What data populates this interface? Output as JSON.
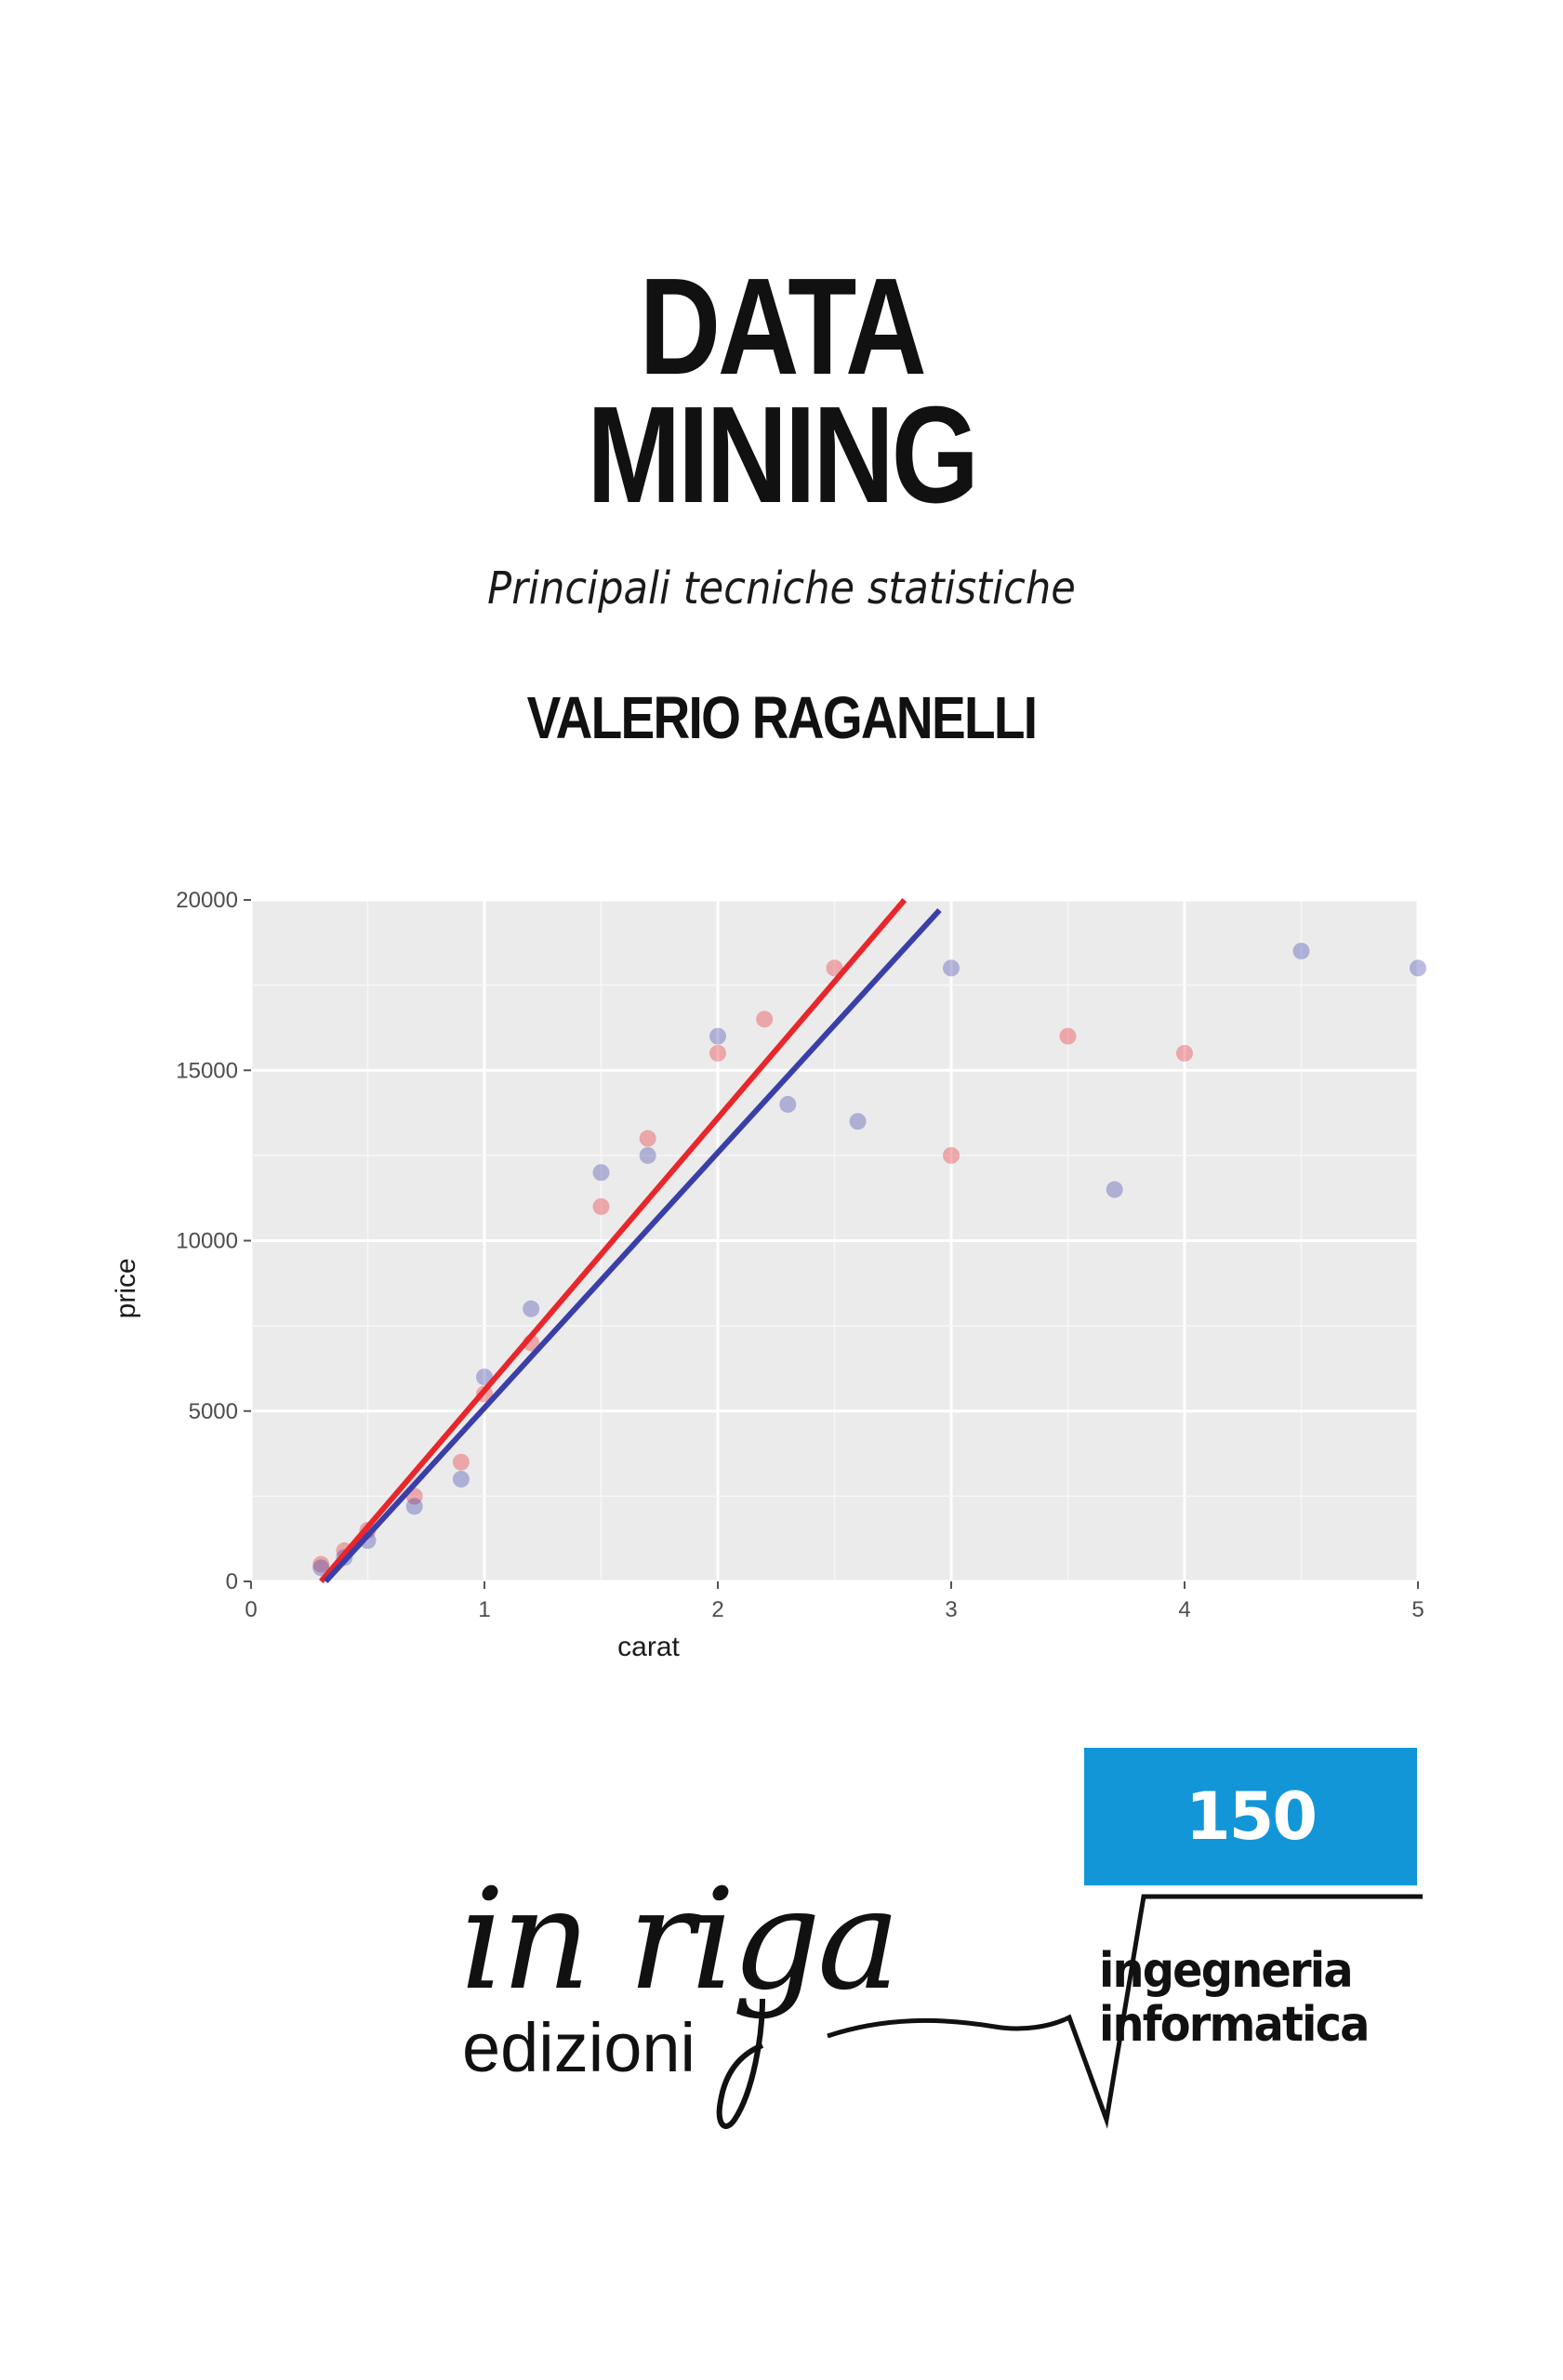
{
  "cover": {
    "title_line_1": "DATA",
    "title_line_2": "MINING",
    "subtitle": "Principali tecniche statistiche",
    "author": "VALERIO RAGANELLI"
  },
  "chart_data": {
    "type": "scatter",
    "title": "",
    "xlabel": "carat",
    "ylabel": "price",
    "xlim": [
      0,
      5
    ],
    "ylim": [
      0,
      20000
    ],
    "x_ticks": [
      "0",
      "1",
      "2",
      "3",
      "4",
      "5"
    ],
    "y_ticks": [
      "0",
      "5000",
      "10000",
      "15000",
      "20000"
    ],
    "grid": true,
    "legend": "none",
    "background": "#ebebeb",
    "series": [
      {
        "color": "#e8262b",
        "points": [
          [
            0.3,
            500
          ],
          [
            0.4,
            900
          ],
          [
            0.5,
            1500
          ],
          [
            0.7,
            2500
          ],
          [
            0.9,
            3500
          ],
          [
            1.0,
            5500
          ],
          [
            1.2,
            7000
          ],
          [
            1.5,
            11000
          ],
          [
            1.7,
            13000
          ],
          [
            2.0,
            15500
          ],
          [
            2.2,
            16500
          ],
          [
            2.5,
            18000
          ],
          [
            3.0,
            12500
          ],
          [
            3.5,
            16000
          ],
          [
            4.0,
            15500
          ]
        ],
        "fit_line": [
          [
            0.3,
            0
          ],
          [
            2.8,
            20000
          ]
        ]
      },
      {
        "color": "#3a3fa8",
        "points": [
          [
            0.3,
            400
          ],
          [
            0.4,
            700
          ],
          [
            0.5,
            1200
          ],
          [
            0.7,
            2200
          ],
          [
            0.9,
            3000
          ],
          [
            1.0,
            6000
          ],
          [
            1.2,
            8000
          ],
          [
            1.5,
            12000
          ],
          [
            1.7,
            12500
          ],
          [
            2.0,
            16000
          ],
          [
            2.3,
            14000
          ],
          [
            2.6,
            13500
          ],
          [
            3.0,
            18000
          ],
          [
            3.7,
            11500
          ],
          [
            4.5,
            18500
          ],
          [
            5.0,
            18000
          ]
        ],
        "fit_line": [
          [
            0.32,
            0
          ],
          [
            2.95,
            19700
          ]
        ]
      }
    ]
  },
  "series_badge": {
    "number": "150",
    "color": "#1296d8"
  },
  "publisher": {
    "logo_script": "in riga",
    "logo_sub": "edizioni",
    "series_line_1": "ingegneria",
    "series_line_2": "informatica"
  }
}
